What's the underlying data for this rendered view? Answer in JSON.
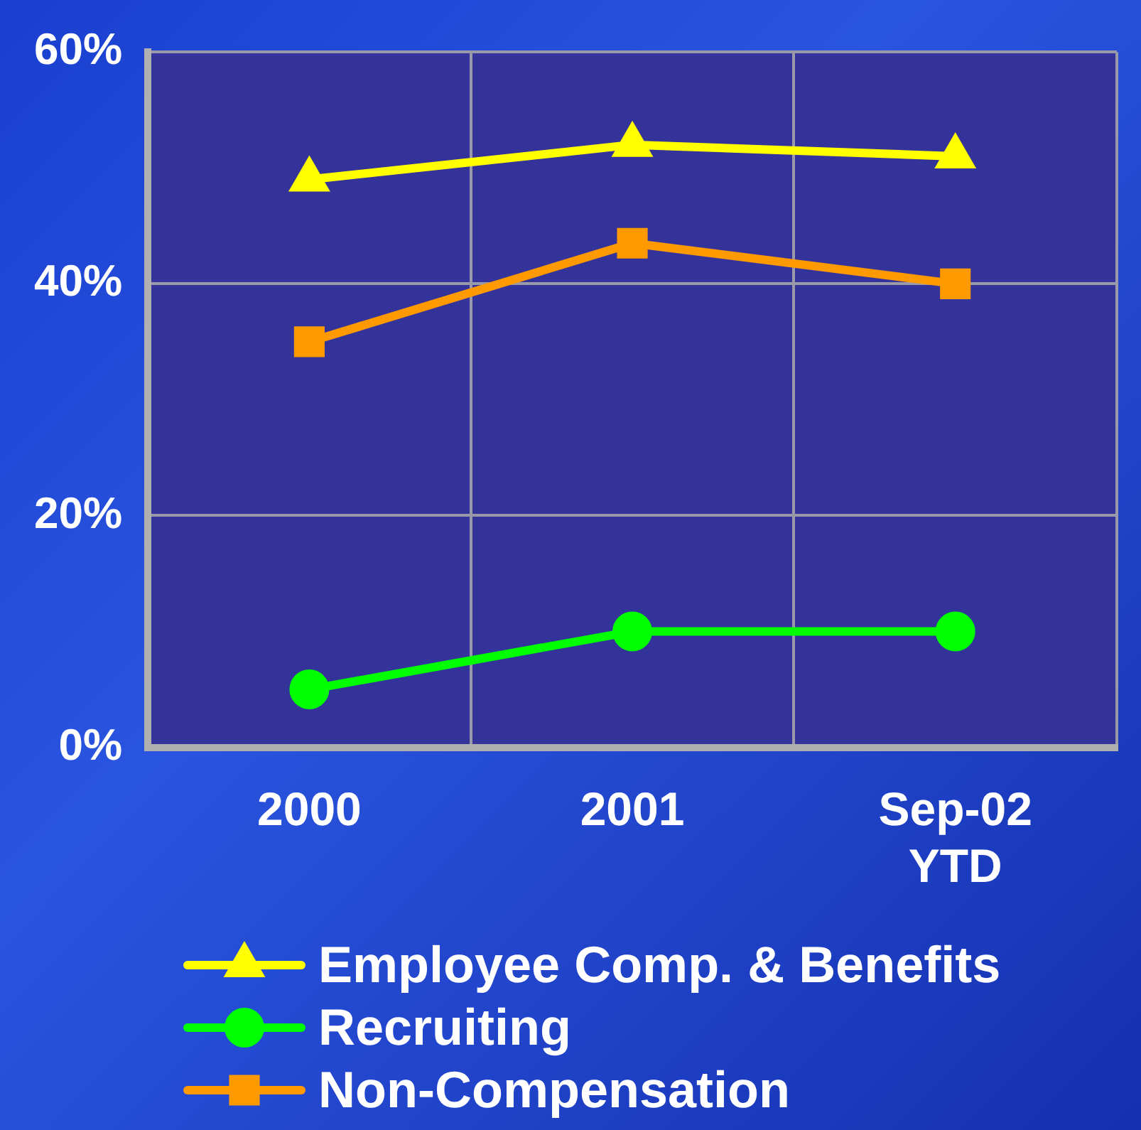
{
  "chart_data": {
    "type": "line",
    "categories": [
      "2000",
      "2001",
      "Sep-02 YTD"
    ],
    "series": [
      {
        "name": "Employee Comp. & Benefits",
        "color": "#ffff00",
        "marker": "triangle",
        "values": [
          49,
          52,
          51
        ]
      },
      {
        "name": "Recruiting",
        "color": "#00ff00",
        "marker": "circle",
        "values": [
          5,
          10,
          10
        ]
      },
      {
        "name": "Non-Compensation",
        "color": "#ff9900",
        "marker": "square",
        "values": [
          35,
          43.5,
          40
        ]
      }
    ],
    "ylim": [
      0,
      60
    ],
    "yticks": [
      {
        "value": 0,
        "label": "0%"
      },
      {
        "value": 20,
        "label": "20%"
      },
      {
        "value": 40,
        "label": "40%"
      },
      {
        "value": 60,
        "label": "60%"
      }
    ],
    "grid": true,
    "legend": "bottom"
  }
}
